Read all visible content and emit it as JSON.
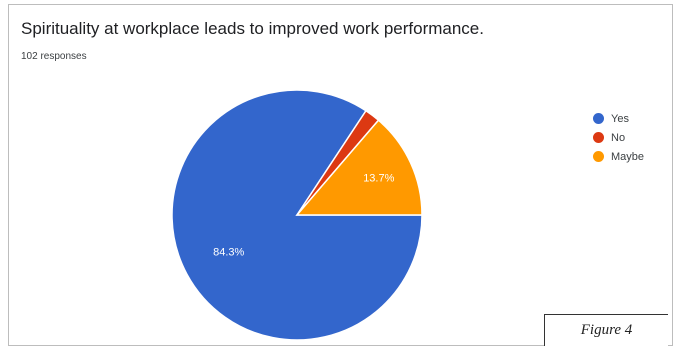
{
  "header": {
    "title": "Spirituality at workplace leads to improved work performance.",
    "subtitle": "102 responses"
  },
  "chart_data": {
    "type": "pie",
    "title": "Spirituality at workplace leads to improved work performance.",
    "subtitle": "102 responses",
    "categories": [
      "Yes",
      "No",
      "Maybe"
    ],
    "values": [
      84.3,
      2.0,
      13.7
    ],
    "data_labels": [
      "84.3%",
      "",
      "13.7%"
    ],
    "colors": [
      "#3366cc",
      "#dc3912",
      "#ff9900"
    ],
    "legend_position": "right"
  },
  "figure_label": "Figure 4"
}
